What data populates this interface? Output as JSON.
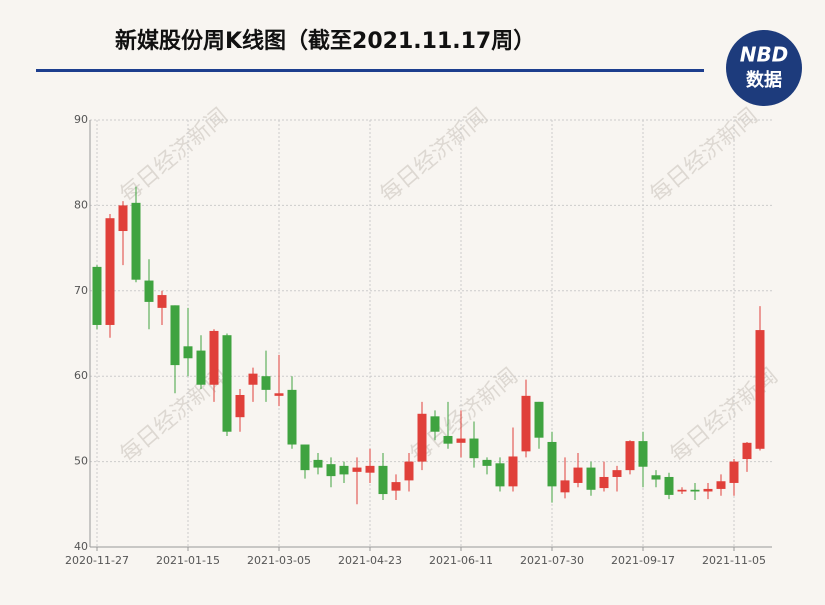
{
  "chart_data": {
    "type": "candlestick",
    "title": "新媒股份周K线图（截至2021.11.17周）",
    "categories": [
      "2020-11-27",
      null,
      null,
      null,
      null,
      null,
      null,
      "2021-01-15",
      null,
      null,
      null,
      null,
      null,
      null,
      "2021-03-05",
      null,
      null,
      null,
      null,
      null,
      null,
      "2021-04-23",
      null,
      null,
      null,
      null,
      null,
      null,
      "2021-06-11",
      null,
      null,
      null,
      null,
      null,
      null,
      "2021-07-30",
      null,
      null,
      null,
      null,
      null,
      null,
      "2021-09-17",
      null,
      null,
      null,
      null,
      null,
      null,
      "2021-11-05",
      null,
      null
    ],
    "open": [
      72.8,
      66,
      77,
      80.3,
      71.2,
      68,
      68.3,
      63.5,
      63,
      59,
      64.8,
      55.2,
      59,
      60,
      57.7,
      58.4,
      52,
      50.2,
      49.7,
      49.5,
      48.8,
      48.7,
      49.5,
      46.6,
      47.8,
      50,
      55.3,
      53,
      52.2,
      52.7,
      50.2,
      49.8,
      47.1,
      51.2,
      57,
      52.3,
      46.4,
      47.5,
      49.3,
      46.9,
      48.2,
      49,
      52.4,
      48.4,
      48.2,
      46.5,
      46.7,
      46.5,
      46.8,
      47.5,
      50.3,
      51.5
    ],
    "high": [
      73,
      79,
      80.5,
      82.2,
      73.7,
      70,
      68.3,
      68,
      64.8,
      65.5,
      65,
      58.5,
      61,
      63,
      62.5,
      60,
      52,
      51,
      50.5,
      50,
      50.5,
      51.5,
      51,
      48.5,
      51,
      57,
      56,
      57,
      56,
      54.7,
      50.5,
      50.5,
      54,
      59.6,
      57,
      53.5,
      50.5,
      51,
      50,
      50,
      49.5,
      52.5,
      53.5,
      49,
      48.7,
      47,
      47.5,
      47.5,
      48.5,
      50.3,
      52.3,
      68.2
    ],
    "low": [
      65.5,
      64.5,
      73,
      71,
      65.5,
      66,
      58,
      60,
      58.5,
      57,
      53,
      53.5,
      57,
      57,
      56.5,
      51.5,
      48,
      48.5,
      47,
      47.5,
      45,
      47.5,
      45.5,
      45.5,
      46.5,
      49,
      52.5,
      51.5,
      50.5,
      49.3,
      48.5,
      46.5,
      46.5,
      50.5,
      51.5,
      45.2,
      45.7,
      47,
      46,
      46.5,
      46.5,
      48.5,
      47,
      47,
      45.6,
      46.2,
      45.5,
      45.6,
      46,
      46,
      48.8,
      51.3
    ],
    "close": [
      66,
      78.5,
      80,
      71.3,
      68.7,
      69.5,
      61.3,
      62.1,
      59,
      65.3,
      53.5,
      57.8,
      60.3,
      58.4,
      58,
      52,
      49,
      49.3,
      48.3,
      48.5,
      49.3,
      49.5,
      46.2,
      47.6,
      50,
      55.6,
      53.5,
      52.1,
      52.7,
      50.4,
      49.5,
      47.1,
      50.6,
      57.7,
      52.8,
      47.1,
      47.8,
      49.3,
      46.7,
      48.2,
      49,
      52.4,
      49.4,
      47.9,
      46.1,
      46.7,
      46.5,
      46.8,
      47.7,
      50,
      52.2,
      65.4
    ],
    "up_color": "#e0403a",
    "down_color": "#3fa340",
    "ylim": [
      40,
      90
    ],
    "yticks": [
      40,
      50,
      60,
      70,
      80,
      90
    ],
    "grid": true
  },
  "logo": {
    "top": "NBD",
    "bottom": "数据"
  },
  "watermark": "每日经济新闻"
}
